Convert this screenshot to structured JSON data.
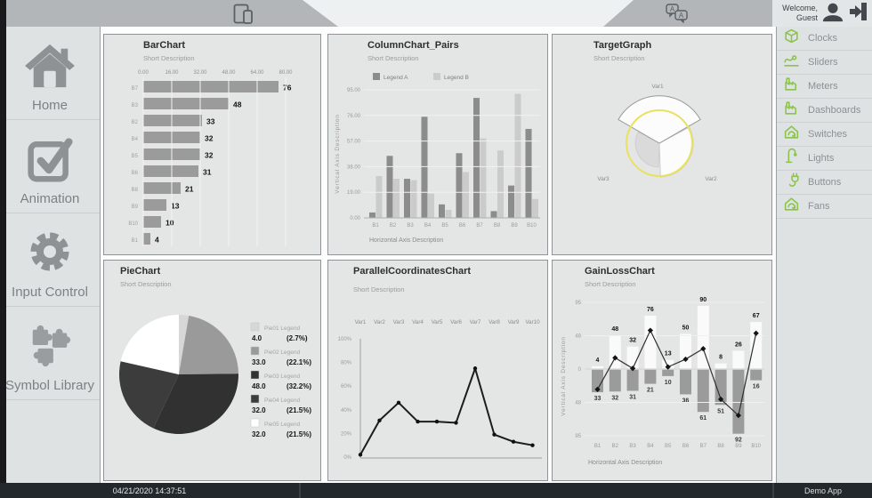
{
  "welcome": {
    "line1": "Welcome,",
    "line2": "Guest"
  },
  "left_sidebar": {
    "items": [
      {
        "label": "Home",
        "icon": "home-icon"
      },
      {
        "label": "Animation",
        "icon": "checkbox-icon"
      },
      {
        "label": "Input Control",
        "icon": "gear-icon"
      },
      {
        "label": "Symbol Library",
        "icon": "puzzle-icon"
      }
    ]
  },
  "right_sidebar": {
    "accent_color": "#8cc34e",
    "items": [
      {
        "label": "Clocks",
        "icon": "box-icon"
      },
      {
        "label": "Sliders",
        "icon": "slider-icon"
      },
      {
        "label": "Meters",
        "icon": "factory-icon"
      },
      {
        "label": "Dashboards",
        "icon": "factory-icon"
      },
      {
        "label": "Switches",
        "icon": "house-arrow-icon"
      },
      {
        "label": "Lights",
        "icon": "lamp-icon"
      },
      {
        "label": "Buttons",
        "icon": "plug-icon"
      },
      {
        "label": "Fans",
        "icon": "house-arrow-icon"
      }
    ]
  },
  "status_bar": {
    "datetime": "04/21/2020 14:37:51",
    "app_name": "Demo App"
  },
  "chart_data": [
    {
      "id": "c0",
      "type": "bar",
      "orientation": "horizontal",
      "title": "BarChart",
      "subtitle": "Short Description",
      "categories": [
        "B7",
        "B3",
        "B2",
        "B4",
        "B5",
        "B6",
        "B8",
        "B9",
        "B10",
        "B1"
      ],
      "values": [
        76,
        48,
        33,
        32,
        32,
        31,
        21,
        13,
        10,
        4
      ],
      "xticks": [
        "0.00",
        "16.00",
        "32.00",
        "48.00",
        "64.00",
        "80.00"
      ],
      "xlim": [
        0,
        80
      ],
      "bar_color": "#9b9b9b",
      "grid": true
    },
    {
      "id": "c1",
      "type": "bar",
      "title": "ColumnChart_Pairs",
      "subtitle": "Short Description",
      "categories": [
        "B1",
        "B2",
        "B3",
        "B4",
        "B5",
        "B6",
        "B7",
        "B8",
        "B9",
        "B10"
      ],
      "series": [
        {
          "name": "Legend A",
          "color": "#8c8c8c",
          "values": [
            4,
            46,
            29,
            75,
            10,
            48,
            89,
            5,
            24,
            66
          ]
        },
        {
          "name": "Legend B",
          "color": "#cbcbcb",
          "values": [
            31,
            29,
            28,
            18,
            6,
            34,
            59,
            50,
            92,
            14
          ]
        }
      ],
      "yticks": [
        "0.00",
        "19.00",
        "38.00",
        "57.00",
        "76.00",
        "95.00"
      ],
      "ylim": [
        0,
        95
      ],
      "xlabel": "Horizontal Axis Description",
      "ylabel": "Vertical Axis Description",
      "legend_position": "top",
      "grid": true
    },
    {
      "id": "c2",
      "type": "other",
      "title": "TargetGraph",
      "subtitle": "Short Description",
      "labels": [
        "Var1",
        "Var2",
        "Var3"
      ],
      "values_pct_of_max_radius": [
        95,
        68,
        48
      ],
      "target_ring_pct": 66,
      "ring_color": "#e9e25e",
      "wedge_fills": [
        "#fcfcfc",
        "#fcfcfc",
        "#d9dad9"
      ]
    },
    {
      "id": "c3",
      "type": "pie",
      "title": "PieChart",
      "subtitle": "Short Description",
      "labels": [
        "Pie01 Legend",
        "Pie02 Legend",
        "Pie03 Legend",
        "Pie04 Legend",
        "Pie05 Legend"
      ],
      "values": [
        4,
        33,
        48,
        32,
        32
      ],
      "values_text": [
        "4.0",
        "33.0",
        "48.0",
        "32.0",
        "32.0"
      ],
      "percents": [
        "(2.7%)",
        "(22.1%)",
        "(32.2%)",
        "(21.5%)",
        "(21.5%)"
      ],
      "colors": [
        "#d7d7d7",
        "#9a9a9a",
        "#313131",
        "#3c3c3c",
        "#ffffff"
      ],
      "legend_position": "right"
    },
    {
      "id": "c4",
      "type": "line",
      "title": "ParallelCoordinatesChart",
      "subtitle": "Short Description",
      "categories": [
        "Var1",
        "Var2",
        "Var3",
        "Var4",
        "Var5",
        "Var6",
        "Var7",
        "Var8",
        "Var9",
        "Var10"
      ],
      "values": [
        2,
        31,
        46,
        30,
        30,
        29,
        75,
        19,
        13,
        10
      ],
      "yticks": [
        "0%",
        "20%",
        "40%",
        "60%",
        "80%",
        "100%"
      ],
      "ylim": [
        0,
        100
      ],
      "line_color": "#1c1c1c"
    },
    {
      "id": "c5",
      "type": "bar-line",
      "title": "GainLossChart",
      "subtitle": "Short Description",
      "categories": [
        "B1",
        "B2",
        "B3",
        "B4",
        "B5",
        "B6",
        "B7",
        "B8",
        "B9",
        "B10"
      ],
      "gains": [
        4,
        48,
        32,
        76,
        13,
        50,
        90,
        8,
        26,
        67
      ],
      "losses": [
        33,
        32,
        31,
        21,
        10,
        36,
        61,
        51,
        92,
        16
      ],
      "net": [
        -29,
        16,
        1,
        55,
        3,
        14,
        29,
        -43,
        -66,
        51
      ],
      "yticks": [
        "95",
        "48",
        "0",
        "48",
        "95"
      ],
      "ylim": [
        -95,
        95
      ],
      "gain_color": "#fafafa",
      "loss_color": "#9b9b9b",
      "xlabel": "Horizontal Axis Description",
      "ylabel": "Vertical Axis Description"
    }
  ]
}
